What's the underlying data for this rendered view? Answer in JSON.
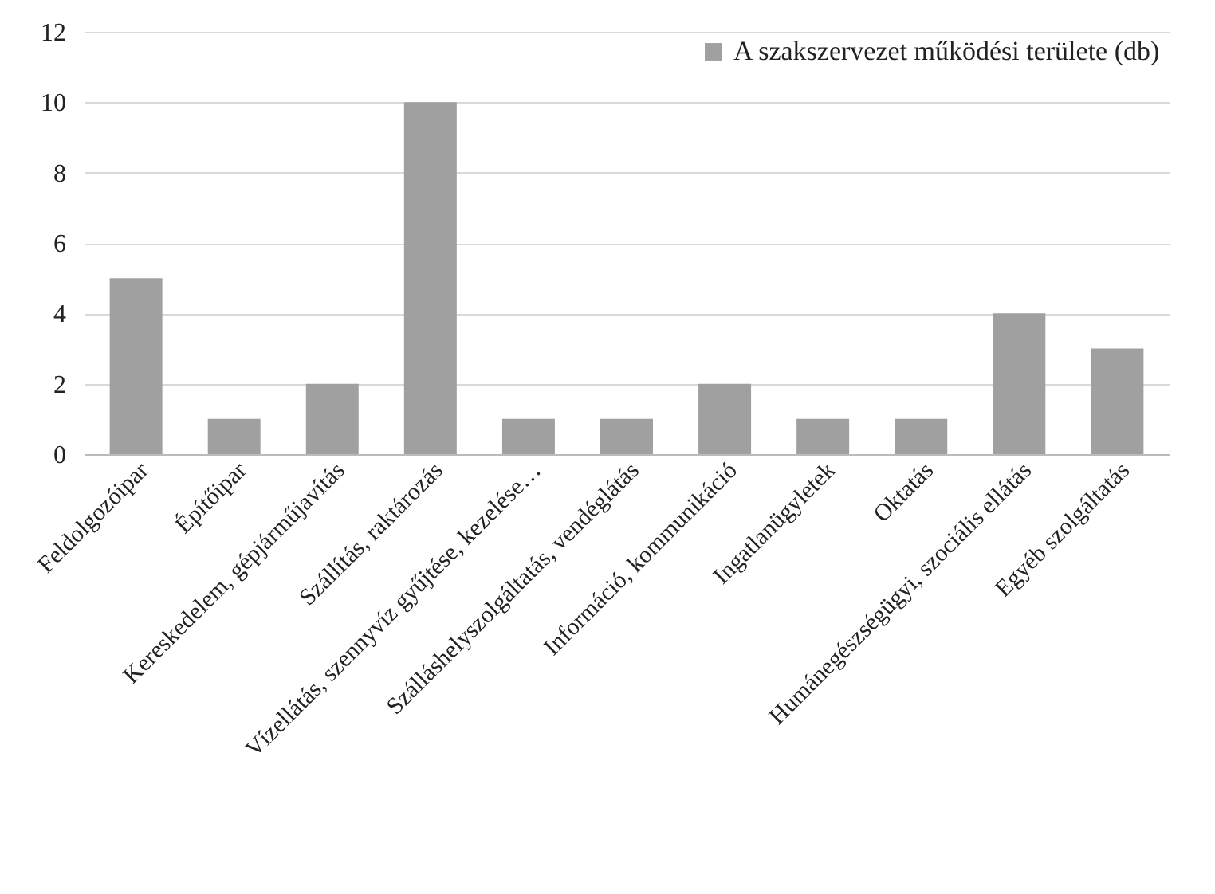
{
  "chart_data": {
    "type": "bar",
    "categories": [
      "Feldolgozóipar",
      "Építőipar",
      "Kereskedelem, gépjárműjavítás",
      "Szállítás, raktározás",
      "Vízellátás, szennyvíz gyűjtése, kezelése…",
      "Szálláshelyszolgáltatás, vendéglátás",
      "Információ, kommunikáció",
      "Ingatlanügyletek",
      "Oktatás",
      "Humánegészségügyi, szociális ellátás",
      "Egyéb szolgáltatás"
    ],
    "series": [
      {
        "name": "A szakszervezet működési területe (db)",
        "color": "#a0a0a0",
        "values": [
          5,
          1,
          2,
          10,
          1,
          1,
          2,
          1,
          1,
          4,
          3
        ]
      }
    ],
    "ylim": [
      0,
      12
    ],
    "yticks": [
      0,
      2,
      4,
      6,
      8,
      10,
      12
    ],
    "grid": "y",
    "legend": "top right"
  }
}
